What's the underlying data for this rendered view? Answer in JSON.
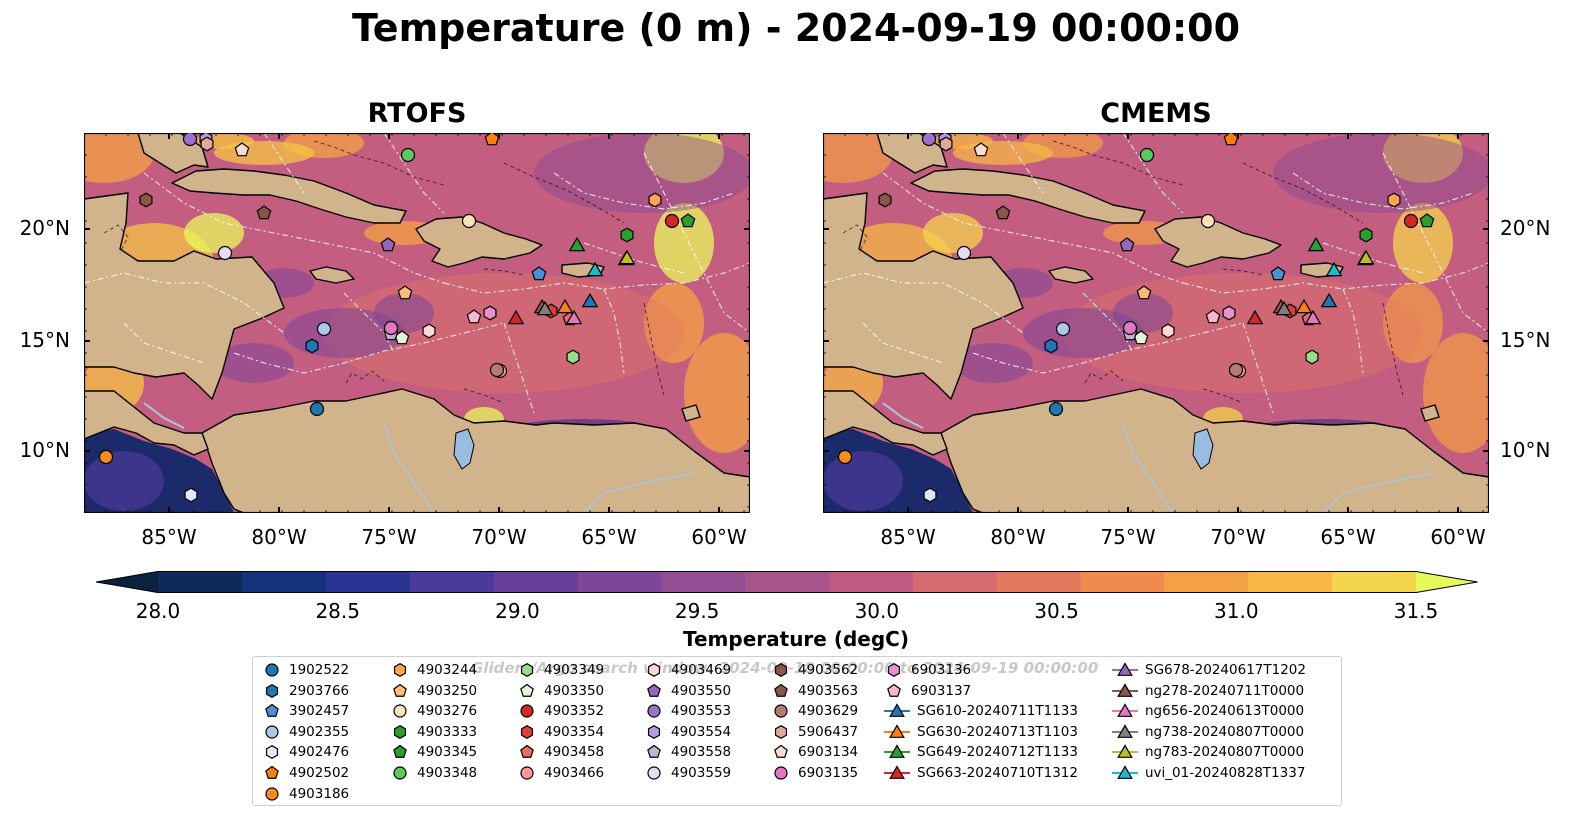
{
  "title": "Temperature (0 m) - 2024-09-19 00:00:00",
  "panels": [
    {
      "title": "RTOFS"
    },
    {
      "title": "CMEMS"
    }
  ],
  "axes": {
    "lon_ticks": [
      "85°W",
      "80°W",
      "75°W",
      "70°W",
      "65°W",
      "60°W"
    ],
    "lat_ticks": [
      "20°N",
      "15°N",
      "10°N"
    ]
  },
  "colorbar": {
    "label": "Temperature (degC)",
    "ticks": [
      "28.0",
      "28.5",
      "29.0",
      "29.5",
      "30.0",
      "30.5",
      "31.0",
      "31.5"
    ],
    "range": [
      28.0,
      31.5
    ],
    "step": 0.25,
    "extend": "both",
    "colors": [
      "#0a2240",
      "#0d2a5a",
      "#14317c",
      "#2a3493",
      "#4b3a9a",
      "#653f9a",
      "#7d4698",
      "#934d93",
      "#a8548a",
      "#bd5c80",
      "#d66a70",
      "#e6785f",
      "#f08a4d",
      "#f4a146",
      "#f7b844",
      "#f5d54c",
      "#e8fa5b"
    ]
  },
  "map": {
    "ocean_color": "#c45e80",
    "land_color": "#d2b48c",
    "lake_color": "#99bde0",
    "river_color": "#a9c6e0"
  },
  "legend": {
    "watermark": "Gliders/Argo search window: 2024-09-18 00:00:00 to 2024-09-19 00:00:00",
    "items": [
      {
        "label": "1902522",
        "marker": "circle",
        "color": "#1f77b4"
      },
      {
        "label": "2903766",
        "marker": "hexagon",
        "color": "#1f77b4"
      },
      {
        "label": "3902457",
        "marker": "pentagon",
        "color": "#4a90d9"
      },
      {
        "label": "4902355",
        "marker": "circle",
        "color": "#aec7e8"
      },
      {
        "label": "4902476",
        "marker": "hexagon",
        "color": "#dde9f8"
      },
      {
        "label": "4902502",
        "marker": "pentagon",
        "color": "#ff7f0e"
      },
      {
        "label": "4903186",
        "marker": "circle",
        "color": "#ff8c1a"
      },
      {
        "label": "4903244",
        "marker": "hexagon",
        "color": "#ffa54f"
      },
      {
        "label": "4903250",
        "marker": "pentagon",
        "color": "#ffbb78"
      },
      {
        "label": "4903276",
        "marker": "circle",
        "color": "#ffe0bd"
      },
      {
        "label": "4903333",
        "marker": "hexagon",
        "color": "#2ca02c"
      },
      {
        "label": "4903345",
        "marker": "pentagon",
        "color": "#2ca02c"
      },
      {
        "label": "4903348",
        "marker": "circle",
        "color": "#5bc85b"
      },
      {
        "label": "4903349",
        "marker": "hexagon",
        "color": "#98df8a"
      },
      {
        "label": "4903350",
        "marker": "pentagon",
        "color": "#dff7d8"
      },
      {
        "label": "4903352",
        "marker": "circle",
        "color": "#d62728"
      },
      {
        "label": "4903354",
        "marker": "hexagon",
        "color": "#e03c3c"
      },
      {
        "label": "4903458",
        "marker": "pentagon",
        "color": "#ec6a6a"
      },
      {
        "label": "4903466",
        "marker": "circle",
        "color": "#ff9896"
      },
      {
        "label": "4903469",
        "marker": "hexagon",
        "color": "#ffd8d6"
      },
      {
        "label": "4903550",
        "marker": "pentagon",
        "color": "#9467bd"
      },
      {
        "label": "4903553",
        "marker": "circle",
        "color": "#9d72cc"
      },
      {
        "label": "4903554",
        "marker": "hexagon",
        "color": "#b49ae0"
      },
      {
        "label": "4903558",
        "marker": "pentagon",
        "color": "#c5b0d5"
      },
      {
        "label": "4903559",
        "marker": "circle",
        "color": "#e8dcf4"
      },
      {
        "label": "4903562",
        "marker": "hexagon",
        "color": "#8c564b"
      },
      {
        "label": "4903563",
        "marker": "pentagon",
        "color": "#8c564b"
      },
      {
        "label": "4903629",
        "marker": "circle",
        "color": "#b47c72"
      },
      {
        "label": "5906437",
        "marker": "hexagon",
        "color": "#e0a899"
      },
      {
        "label": "6903134",
        "marker": "pentagon",
        "color": "#f7dccf"
      },
      {
        "label": "6903135",
        "marker": "circle",
        "color": "#e377c2"
      },
      {
        "label": "6903136",
        "marker": "hexagon",
        "color": "#ea8fd0"
      },
      {
        "label": "6903137",
        "marker": "pentagon",
        "color": "#f7b6d2"
      },
      {
        "label": "SG610-20240711T1133",
        "marker": "line-triangle",
        "color": "#1f77b4"
      },
      {
        "label": "SG630-20240713T1103",
        "marker": "line-triangle",
        "color": "#ff7f0e"
      },
      {
        "label": "SG649-20240712T1133",
        "marker": "line-triangle",
        "color": "#2ca02c"
      },
      {
        "label": "SG663-20240710T1312",
        "marker": "line-triangle",
        "color": "#d62728"
      },
      {
        "label": "SG678-20240617T1202",
        "marker": "line-triangle",
        "color": "#9467bd"
      },
      {
        "label": "ng278-20240711T0000",
        "marker": "line-triangle",
        "color": "#8c564b"
      },
      {
        "label": "ng656-20240613T0000",
        "marker": "line-triangle",
        "color": "#e377c2"
      },
      {
        "label": "ng738-20240807T0000",
        "marker": "line-triangle",
        "color": "#7f7f7f"
      },
      {
        "label": "ng783-20240807T0000",
        "marker": "line-triangle",
        "color": "#bcbd22"
      },
      {
        "label": "uvi_01-20240828T1337",
        "marker": "line-triangle",
        "color": "#17becf"
      }
    ]
  }
}
